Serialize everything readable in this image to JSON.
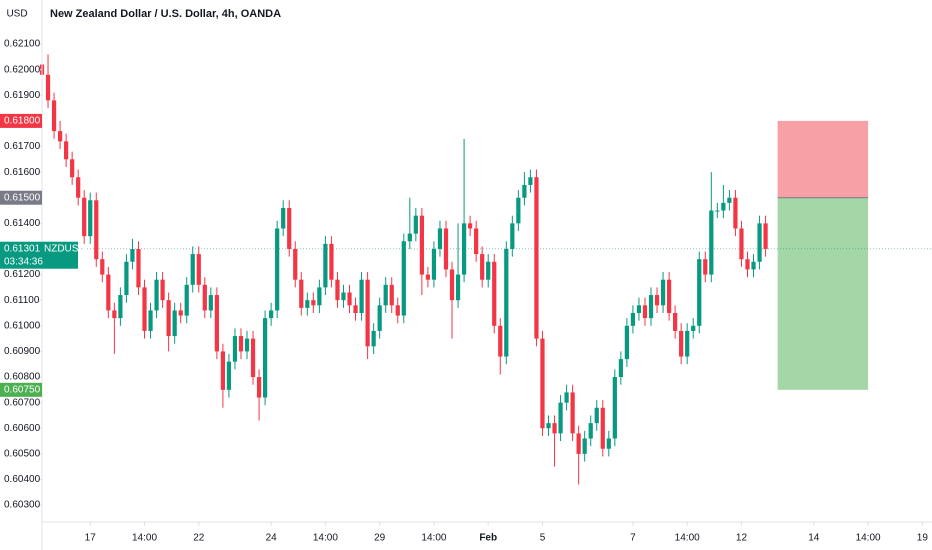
{
  "chart_data": {
    "type": "candlestick",
    "title": "New Zealand Dollar / U.S. Dollar, 4h, OANDA",
    "currency": "USD",
    "up_color": "#089981",
    "down_color": "#f23645",
    "ylim": [
      0.60234,
      0.62272
    ],
    "yticks": [
      {
        "value": 0.603,
        "label": "0.60300"
      },
      {
        "value": 0.604,
        "label": "0.60400"
      },
      {
        "value": 0.605,
        "label": "0.60500"
      },
      {
        "value": 0.606,
        "label": "0.60600"
      },
      {
        "value": 0.607,
        "label": "0.60700"
      },
      {
        "value": 0.608,
        "label": "0.60800"
      },
      {
        "value": 0.609,
        "label": "0.60900"
      },
      {
        "value": 0.61,
        "label": "0.61000"
      },
      {
        "value": 0.611,
        "label": "0.61100"
      },
      {
        "value": 0.612,
        "label": "0.61200"
      },
      {
        "value": 0.614,
        "label": "0.61400"
      },
      {
        "value": 0.616,
        "label": "0.61600"
      },
      {
        "value": 0.617,
        "label": "0.61700"
      },
      {
        "value": 0.619,
        "label": "0.61900"
      },
      {
        "value": 0.62,
        "label": "0.62000"
      },
      {
        "value": 0.621,
        "label": "0.62100"
      }
    ],
    "xlim": [
      -8,
      139.6
    ],
    "xticks": [
      {
        "value": 0,
        "label": "17"
      },
      {
        "value": 9,
        "label": "14:00"
      },
      {
        "value": 18,
        "label": "22"
      },
      {
        "value": 30,
        "label": "24"
      },
      {
        "value": 39,
        "label": "14:00"
      },
      {
        "value": 48,
        "label": "29"
      },
      {
        "value": 57,
        "label": "14:00"
      },
      {
        "value": 66,
        "label": "Feb"
      },
      {
        "value": 75,
        "label": "5"
      },
      {
        "value": 90,
        "label": "7"
      },
      {
        "value": 99,
        "label": "14:00"
      },
      {
        "value": 108,
        "label": "12"
      },
      {
        "value": 120,
        "label": "14"
      },
      {
        "value": 129,
        "label": "14:00"
      },
      {
        "value": 138,
        "label": "19"
      }
    ],
    "x": [
      -8,
      -7,
      -6,
      -5,
      -4,
      -3,
      -2,
      -1,
      0,
      1,
      2,
      3,
      4,
      5,
      6,
      7,
      8,
      9,
      10,
      11,
      12,
      13,
      14,
      15,
      16,
      17,
      18,
      19,
      20,
      21,
      22,
      23,
      24,
      25,
      26,
      27,
      28,
      29,
      30,
      31,
      32,
      33,
      34,
      35,
      36,
      37,
      38,
      39,
      40,
      41,
      42,
      43,
      44,
      45,
      46,
      47,
      48,
      49,
      50,
      51,
      52,
      53,
      54,
      55,
      56,
      57,
      58,
      59,
      60,
      61,
      62,
      63,
      64,
      65,
      66,
      67,
      68,
      69,
      70,
      71,
      72,
      73,
      74,
      75,
      76,
      77,
      78,
      79,
      80,
      81,
      82,
      83,
      84,
      85,
      86,
      87,
      88,
      89,
      90,
      91,
      92,
      93,
      94,
      95,
      96,
      97,
      98,
      99,
      100,
      101,
      102,
      103,
      104,
      105,
      106,
      107,
      108,
      109,
      110,
      111,
      112
    ],
    "open": [
      0.6202,
      0.6198,
      0.6188,
      0.6176,
      0.6172,
      0.6165,
      0.6158,
      0.615,
      0.6135,
      0.6149,
      0.6126,
      0.612,
      0.6106,
      0.6103,
      0.6112,
      0.6125,
      0.613,
      0.6115,
      0.6098,
      0.6106,
      0.6118,
      0.611,
      0.6096,
      0.6106,
      0.6104,
      0.6116,
      0.6128,
      0.6116,
      0.6106,
      0.6112,
      0.609,
      0.6075,
      0.6086,
      0.6096,
      0.609,
      0.6095,
      0.608,
      0.6072,
      0.6103,
      0.6106,
      0.6138,
      0.6146,
      0.613,
      0.6118,
      0.6107,
      0.611,
      0.6108,
      0.6115,
      0.6132,
      0.6118,
      0.611,
      0.6113,
      0.6108,
      0.6105,
      0.6118,
      0.6092,
      0.6098,
      0.6108,
      0.6116,
      0.6108,
      0.6104,
      0.6133,
      0.6136,
      0.6143,
      0.612,
      0.6118,
      0.613,
      0.6138,
      0.6122,
      0.611,
      0.612,
      0.614,
      0.6138,
      0.6128,
      0.6118,
      0.6125,
      0.61,
      0.6088,
      0.613,
      0.614,
      0.615,
      0.6155,
      0.6158,
      0.6095,
      0.606,
      0.6062,
      0.6058,
      0.607,
      0.6074,
      0.6058,
      0.605,
      0.6056,
      0.6062,
      0.6068,
      0.6052,
      0.6056,
      0.608,
      0.6087,
      0.61,
      0.6105,
      0.6108,
      0.6103,
      0.6112,
      0.6108,
      0.6118,
      0.6105,
      0.6098,
      0.6088,
      0.6098,
      0.61,
      0.6126,
      0.612,
      0.6145,
      0.6145,
      0.6148,
      0.615,
      0.6138,
      0.6126,
      0.6122,
      0.6125,
      0.614
    ],
    "high": [
      0.6205,
      0.6206,
      0.6191,
      0.618,
      0.6175,
      0.6168,
      0.6161,
      0.6153,
      0.6152,
      0.6152,
      0.6129,
      0.6123,
      0.6109,
      0.6115,
      0.6128,
      0.6134,
      0.6133,
      0.6118,
      0.6109,
      0.6121,
      0.6121,
      0.6113,
      0.6109,
      0.6109,
      0.6119,
      0.6131,
      0.6131,
      0.6119,
      0.6115,
      0.6115,
      0.6093,
      0.6089,
      0.6099,
      0.6099,
      0.6098,
      0.6098,
      0.6083,
      0.6106,
      0.6109,
      0.6141,
      0.6149,
      0.6149,
      0.6133,
      0.6121,
      0.6113,
      0.6113,
      0.6118,
      0.6135,
      0.6135,
      0.6121,
      0.6116,
      0.6116,
      0.6111,
      0.6121,
      0.6121,
      0.6101,
      0.6111,
      0.6119,
      0.6119,
      0.6111,
      0.6136,
      0.615,
      0.6146,
      0.6146,
      0.6123,
      0.6133,
      0.6141,
      0.6141,
      0.6125,
      0.614,
      0.6173,
      0.6143,
      0.6141,
      0.6131,
      0.6128,
      0.6128,
      0.6103,
      0.6133,
      0.6143,
      0.6153,
      0.616,
      0.6161,
      0.6161,
      0.6098,
      0.6065,
      0.6065,
      0.6073,
      0.6077,
      0.6077,
      0.6061,
      0.6059,
      0.6065,
      0.6071,
      0.6071,
      0.6059,
      0.6083,
      0.609,
      0.6103,
      0.6108,
      0.6111,
      0.6111,
      0.6115,
      0.6115,
      0.6121,
      0.6121,
      0.6108,
      0.6101,
      0.6101,
      0.6103,
      0.6129,
      0.6129,
      0.616,
      0.6148,
      0.6155,
      0.6153,
      0.6153,
      0.6141,
      0.6129,
      0.6128,
      0.6143,
      0.6143
    ],
    "low": [
      0.6195,
      0.6185,
      0.6173,
      0.6169,
      0.6162,
      0.6155,
      0.6147,
      0.6132,
      0.6132,
      0.6123,
      0.6117,
      0.6103,
      0.6089,
      0.61,
      0.6109,
      0.6122,
      0.6112,
      0.6095,
      0.6095,
      0.6103,
      0.6107,
      0.609,
      0.6093,
      0.6101,
      0.6101,
      0.6113,
      0.6113,
      0.6103,
      0.6103,
      0.6087,
      0.6068,
      0.6072,
      0.6083,
      0.6087,
      0.6087,
      0.6077,
      0.6063,
      0.6069,
      0.61,
      0.6103,
      0.6135,
      0.6127,
      0.6115,
      0.6104,
      0.6104,
      0.6105,
      0.6105,
      0.6112,
      0.6115,
      0.6107,
      0.6107,
      0.6105,
      0.6102,
      0.6102,
      0.6087,
      0.6089,
      0.6095,
      0.6105,
      0.6105,
      0.6101,
      0.6101,
      0.613,
      0.6133,
      0.6112,
      0.6115,
      0.6115,
      0.6127,
      0.6119,
      0.6095,
      0.6107,
      0.6117,
      0.6135,
      0.6125,
      0.6115,
      0.6115,
      0.6097,
      0.6081,
      0.6085,
      0.6127,
      0.6137,
      0.6147,
      0.6152,
      0.6092,
      0.6057,
      0.6057,
      0.6045,
      0.6055,
      0.6067,
      0.6055,
      0.6038,
      0.6047,
      0.6053,
      0.6059,
      0.6049,
      0.6049,
      0.6053,
      0.6077,
      0.6084,
      0.6097,
      0.6102,
      0.61,
      0.61,
      0.6105,
      0.6105,
      0.6102,
      0.6095,
      0.6085,
      0.6085,
      0.6095,
      0.6097,
      0.6117,
      0.6117,
      0.6142,
      0.6142,
      0.6145,
      0.6135,
      0.6123,
      0.6119,
      0.6119,
      0.6122,
      0.6127
    ],
    "close": [
      0.6198,
      0.6188,
      0.6176,
      0.6172,
      0.6165,
      0.6158,
      0.615,
      0.6135,
      0.6149,
      0.6126,
      0.612,
      0.6106,
      0.6103,
      0.6112,
      0.6125,
      0.613,
      0.6115,
      0.6098,
      0.6106,
      0.6118,
      0.611,
      0.6096,
      0.6106,
      0.6104,
      0.6116,
      0.6128,
      0.6116,
      0.6106,
      0.6112,
      0.609,
      0.6075,
      0.6086,
      0.6096,
      0.609,
      0.6095,
      0.608,
      0.6072,
      0.6103,
      0.6106,
      0.6138,
      0.6146,
      0.613,
      0.6118,
      0.6107,
      0.611,
      0.6108,
      0.6115,
      0.6132,
      0.6118,
      0.611,
      0.6113,
      0.6108,
      0.6105,
      0.6118,
      0.6092,
      0.6098,
      0.6108,
      0.6116,
      0.6108,
      0.6104,
      0.6133,
      0.6136,
      0.6143,
      0.612,
      0.6118,
      0.613,
      0.6138,
      0.6122,
      0.611,
      0.612,
      0.614,
      0.6138,
      0.6128,
      0.6118,
      0.6125,
      0.61,
      0.6088,
      0.613,
      0.614,
      0.615,
      0.6155,
      0.6158,
      0.6095,
      0.606,
      0.6062,
      0.6058,
      0.607,
      0.6074,
      0.6058,
      0.605,
      0.6056,
      0.6062,
      0.6068,
      0.6052,
      0.6056,
      0.608,
      0.6087,
      0.61,
      0.6105,
      0.6108,
      0.6103,
      0.6112,
      0.6108,
      0.6118,
      0.6105,
      0.6098,
      0.6088,
      0.6098,
      0.61,
      0.6126,
      0.612,
      0.6145,
      0.6145,
      0.6148,
      0.615,
      0.6138,
      0.6126,
      0.6122,
      0.6125,
      0.614,
      0.613
    ],
    "position": {
      "stop": 0.618,
      "entry": 0.615,
      "target": 0.6075,
      "start": 114,
      "end": 129,
      "stop_color": "#f7a1a6",
      "target_color": "#a5d6a7"
    },
    "price_labels": [
      {
        "value": 0.618,
        "label": "0.61800",
        "color": "#f23645"
      },
      {
        "value": 0.615,
        "label": "0.61500",
        "color": "#787b86"
      },
      {
        "value": 0.6075,
        "label": "0.60750",
        "color": "#4caf50"
      }
    ],
    "last_price": {
      "value": 0.61301,
      "label": "0.61301",
      "symbol": "NZDUSD",
      "countdown": "03:34:36",
      "color": "#089981"
    }
  }
}
